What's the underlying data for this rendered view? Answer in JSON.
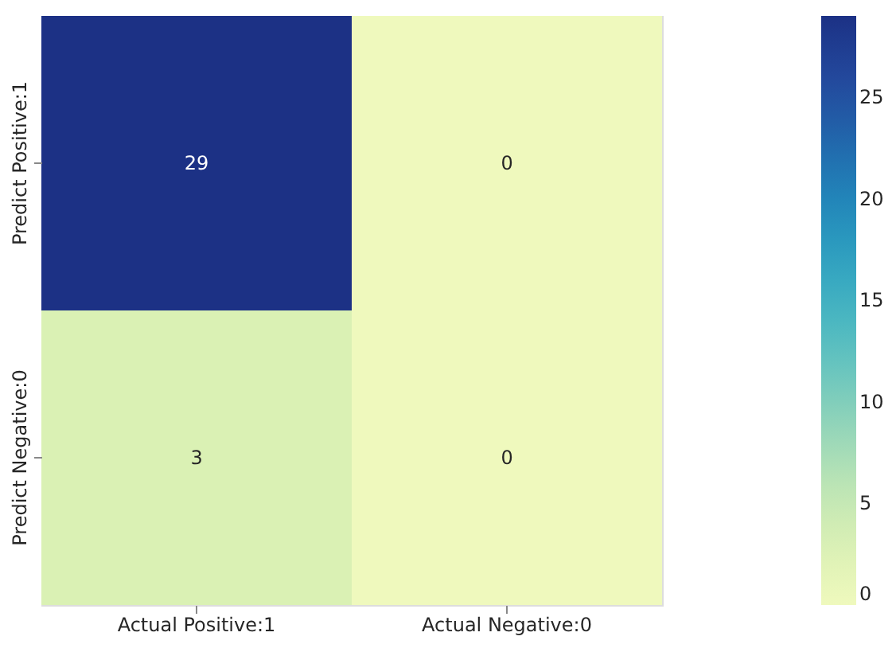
{
  "chart_data": {
    "type": "heatmap",
    "categories": [
      "Actual Positive:1",
      "Actual Negative:0"
    ],
    "y_categories": [
      "Predict Positive:1",
      "Predict Negative:0"
    ],
    "cells": [
      [
        29,
        0
      ],
      [
        3,
        0
      ]
    ],
    "clim": [
      0,
      29
    ],
    "cticks": [
      0,
      5,
      10,
      15,
      20,
      25
    ],
    "data_labels": true
  }
}
